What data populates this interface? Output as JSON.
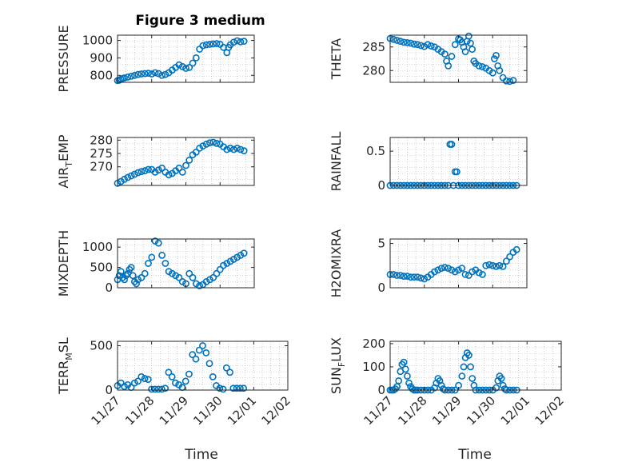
{
  "chart_data": [
    {
      "id": "pressure",
      "type": "scatter",
      "title": "Figure 3 medium",
      "ylabel": "PRESSURE",
      "ylabel_sub": "",
      "ylabel_tail": "",
      "xlim": [
        "11/27",
        "12/01"
      ],
      "ylim": [
        760,
        1030
      ],
      "yticks": [
        800,
        900,
        1000
      ],
      "ytick_labels": [
        "800",
        "900",
        "1000"
      ],
      "grid": true,
      "x": [
        0.0,
        0.05,
        0.1,
        0.15,
        0.2,
        0.3,
        0.4,
        0.5,
        0.6,
        0.7,
        0.8,
        0.9,
        1.0,
        1.1,
        1.2,
        1.3,
        1.4,
        1.5,
        1.6,
        1.7,
        1.8,
        1.9,
        2.0,
        2.1,
        2.2,
        2.3,
        2.4,
        2.5,
        2.6,
        2.7,
        2.8,
        2.9,
        3.0,
        3.1,
        3.2,
        3.25,
        3.3,
        3.4,
        3.5,
        3.6,
        3.7
      ],
      "y": [
        770,
        772,
        778,
        782,
        785,
        790,
        795,
        800,
        805,
        808,
        810,
        812,
        808,
        815,
        810,
        800,
        805,
        815,
        830,
        845,
        860,
        850,
        840,
        845,
        870,
        900,
        950,
        970,
        975,
        978,
        980,
        982,
        978,
        960,
        930,
        960,
        975,
        990,
        998,
        992,
        995
      ]
    },
    {
      "id": "theta",
      "type": "scatter",
      "title": "",
      "ylabel": "THETA",
      "ylabel_sub": "",
      "ylabel_tail": "",
      "xlim": [
        "11/27",
        "12/01"
      ],
      "ylim": [
        277.5,
        287.5
      ],
      "yticks": [
        280,
        285
      ],
      "ytick_labels": [
        "280",
        "285"
      ],
      "grid": true,
      "x": [
        0.0,
        0.1,
        0.2,
        0.3,
        0.4,
        0.5,
        0.6,
        0.7,
        0.8,
        0.9,
        1.0,
        1.1,
        1.2,
        1.3,
        1.4,
        1.5,
        1.6,
        1.65,
        1.7,
        1.8,
        1.9,
        2.0,
        2.05,
        2.1,
        2.15,
        2.2,
        2.25,
        2.3,
        2.35,
        2.4,
        2.45,
        2.5,
        2.6,
        2.7,
        2.8,
        2.9,
        3.0,
        3.05,
        3.1,
        3.15,
        3.2,
        3.3,
        3.4,
        3.5,
        3.6
      ],
      "y": [
        286.8,
        286.6,
        286.4,
        286.2,
        286.0,
        285.9,
        285.8,
        285.6,
        285.5,
        285.3,
        285.1,
        285.5,
        285.2,
        285.0,
        284.5,
        284.0,
        283.5,
        282.0,
        281.0,
        283.0,
        285.5,
        286.7,
        286.5,
        286.0,
        285.0,
        284.0,
        286.2,
        287.3,
        285.8,
        284.5,
        282.0,
        281.5,
        281.0,
        280.8,
        280.5,
        280.0,
        279.5,
        282.5,
        283.2,
        281.0,
        280.0,
        278.5,
        277.8,
        277.7,
        277.9
      ]
    },
    {
      "id": "air_temp",
      "type": "scatter",
      "title": "",
      "ylabel": "AIR",
      "ylabel_sub": "T",
      "ylabel_tail": "EMP",
      "xlim": [
        "11/27",
        "12/01"
      ],
      "ylim": [
        263,
        281
      ],
      "yticks": [
        270,
        275,
        280
      ],
      "ytick_labels": [
        "270",
        "275",
        "280"
      ],
      "grid": true,
      "x": [
        0.0,
        0.1,
        0.2,
        0.3,
        0.4,
        0.5,
        0.6,
        0.7,
        0.8,
        0.9,
        1.0,
        1.1,
        1.2,
        1.3,
        1.4,
        1.5,
        1.6,
        1.7,
        1.8,
        1.9,
        2.0,
        2.1,
        2.2,
        2.3,
        2.4,
        2.5,
        2.6,
        2.7,
        2.8,
        2.9,
        3.0,
        3.1,
        3.2,
        3.3,
        3.4,
        3.5,
        3.6,
        3.7
      ],
      "y": [
        263.8,
        264.5,
        265.3,
        266.0,
        266.6,
        267.2,
        267.8,
        268.2,
        268.5,
        269.0,
        269.0,
        268.0,
        268.8,
        269.5,
        268.0,
        267.0,
        267.5,
        268.5,
        269.5,
        268.0,
        270.5,
        272.5,
        274.5,
        275.5,
        277.0,
        277.8,
        278.5,
        279.0,
        279.2,
        278.8,
        278.5,
        277.5,
        276.5,
        277.0,
        276.5,
        277.0,
        276.5,
        276.0
      ]
    },
    {
      "id": "rainfall",
      "type": "scatter",
      "title": "",
      "ylabel": "RAINFALL",
      "ylabel_sub": "",
      "ylabel_tail": "",
      "xlim": [
        "11/27",
        "12/01"
      ],
      "ylim": [
        0,
        0.7
      ],
      "yticks": [
        0,
        0.5
      ],
      "ytick_labels": [
        "0",
        "0.5"
      ],
      "grid": true,
      "x": [
        0.0,
        0.1,
        0.2,
        0.3,
        0.4,
        0.5,
        0.6,
        0.7,
        0.8,
        0.9,
        1.0,
        1.1,
        1.2,
        1.3,
        1.4,
        1.5,
        1.6,
        1.7,
        1.75,
        1.8,
        1.85,
        1.9,
        1.95,
        2.0,
        2.1,
        2.2,
        2.3,
        2.4,
        2.5,
        2.6,
        2.7,
        2.8,
        2.9,
        3.0,
        3.1,
        3.2,
        3.3,
        3.4,
        3.5,
        3.6,
        3.7
      ],
      "y": [
        0,
        0,
        0,
        0,
        0,
        0,
        0,
        0,
        0,
        0,
        0,
        0,
        0,
        0,
        0,
        0,
        0,
        0,
        0.6,
        0.6,
        0,
        0.2,
        0.2,
        0,
        0,
        0,
        0,
        0,
        0,
        0,
        0,
        0,
        0,
        0,
        0,
        0,
        0,
        0,
        0,
        0,
        0
      ]
    },
    {
      "id": "mixdepth",
      "type": "scatter",
      "title": "",
      "ylabel": "MIXDEPTH",
      "ylabel_sub": "",
      "ylabel_tail": "",
      "xlim": [
        "11/27",
        "12/01"
      ],
      "ylim": [
        0,
        1200
      ],
      "yticks": [
        0,
        500,
        1000
      ],
      "ytick_labels": [
        "0",
        "500",
        "1000"
      ],
      "grid": true,
      "x": [
        0.0,
        0.05,
        0.1,
        0.15,
        0.2,
        0.25,
        0.3,
        0.35,
        0.4,
        0.45,
        0.5,
        0.55,
        0.6,
        0.7,
        0.8,
        0.9,
        1.0,
        1.1,
        1.2,
        1.3,
        1.4,
        1.5,
        1.6,
        1.7,
        1.8,
        1.9,
        2.0,
        2.1,
        2.2,
        2.3,
        2.4,
        2.5,
        2.6,
        2.7,
        2.8,
        2.9,
        3.0,
        3.1,
        3.2,
        3.3,
        3.4,
        3.5,
        3.6,
        3.7
      ],
      "y": [
        200,
        300,
        400,
        250,
        200,
        300,
        350,
        450,
        500,
        300,
        150,
        100,
        200,
        250,
        350,
        600,
        750,
        1150,
        1100,
        800,
        600,
        400,
        350,
        300,
        250,
        150,
        100,
        350,
        250,
        100,
        50,
        80,
        150,
        200,
        250,
        350,
        450,
        550,
        600,
        650,
        700,
        750,
        800,
        850
      ]
    },
    {
      "id": "h2omixra",
      "type": "scatter",
      "title": "",
      "ylabel": "H2OMIXRA",
      "ylabel_sub": "",
      "ylabel_tail": "",
      "xlim": [
        "11/27",
        "12/01"
      ],
      "ylim": [
        0,
        5.5
      ],
      "yticks": [
        0,
        5
      ],
      "ytick_labels": [
        "0",
        "5"
      ],
      "grid": true,
      "x": [
        0.0,
        0.1,
        0.2,
        0.3,
        0.4,
        0.5,
        0.6,
        0.7,
        0.8,
        0.9,
        1.0,
        1.1,
        1.2,
        1.3,
        1.4,
        1.5,
        1.6,
        1.7,
        1.8,
        1.9,
        2.0,
        2.1,
        2.2,
        2.3,
        2.4,
        2.5,
        2.6,
        2.7,
        2.8,
        2.9,
        3.0,
        3.1,
        3.2,
        3.3,
        3.4,
        3.5,
        3.6,
        3.7
      ],
      "y": [
        1.5,
        1.5,
        1.4,
        1.4,
        1.3,
        1.3,
        1.2,
        1.2,
        1.2,
        1.1,
        1.0,
        1.2,
        1.5,
        1.8,
        2.0,
        2.2,
        2.3,
        2.2,
        2.0,
        1.8,
        2.0,
        2.2,
        1.5,
        1.4,
        1.8,
        2.0,
        1.7,
        1.5,
        2.5,
        2.6,
        2.5,
        2.4,
        2.5,
        2.4,
        3.0,
        3.5,
        4.0,
        4.3
      ]
    },
    {
      "id": "terr_msl",
      "type": "scatter",
      "title": "",
      "ylabel": "TERR",
      "ylabel_sub": "M",
      "ylabel_tail": "SL",
      "xlim": [
        "11/27",
        "12/02"
      ],
      "ylim": [
        0,
        550
      ],
      "yticks": [
        0,
        500
      ],
      "ytick_labels": [
        "0",
        "500"
      ],
      "xticks": [
        "11/27",
        "11/28",
        "11/29",
        "11/30",
        "12/01",
        "12/02"
      ],
      "grid": true,
      "x": [
        0.0,
        0.1,
        0.2,
        0.3,
        0.4,
        0.5,
        0.6,
        0.7,
        0.8,
        0.9,
        1.0,
        1.1,
        1.2,
        1.3,
        1.4,
        1.5,
        1.6,
        1.7,
        1.8,
        1.9,
        2.0,
        2.1,
        2.2,
        2.3,
        2.4,
        2.5,
        2.6,
        2.7,
        2.8,
        2.9,
        3.0,
        3.1,
        3.2,
        3.3,
        3.4,
        3.5,
        3.6,
        3.7
      ],
      "y": [
        50,
        80,
        40,
        60,
        30,
        80,
        100,
        150,
        130,
        120,
        10,
        10,
        10,
        10,
        20,
        200,
        150,
        80,
        60,
        30,
        100,
        180,
        400,
        350,
        450,
        500,
        420,
        300,
        150,
        50,
        20,
        10,
        250,
        200,
        20,
        20,
        20,
        20
      ]
    },
    {
      "id": "sun_flux",
      "type": "scatter",
      "title": "",
      "ylabel": "SUN",
      "ylabel_sub": "F",
      "ylabel_tail": "LUX",
      "xlim": [
        "11/27",
        "12/02"
      ],
      "ylim": [
        0,
        210
      ],
      "yticks": [
        0,
        100,
        200
      ],
      "ytick_labels": [
        "0",
        "100",
        "200"
      ],
      "xticks": [
        "11/27",
        "11/28",
        "11/29",
        "11/30",
        "12/01",
        "12/02"
      ],
      "grid": true,
      "x": [
        0.0,
        0.05,
        0.1,
        0.15,
        0.2,
        0.25,
        0.3,
        0.35,
        0.4,
        0.45,
        0.5,
        0.55,
        0.6,
        0.65,
        0.7,
        0.75,
        0.8,
        0.9,
        1.0,
        1.1,
        1.2,
        1.3,
        1.35,
        1.4,
        1.45,
        1.5,
        1.55,
        1.6,
        1.7,
        1.8,
        1.9,
        2.0,
        2.1,
        2.15,
        2.2,
        2.25,
        2.3,
        2.35,
        2.4,
        2.45,
        2.5,
        2.6,
        2.7,
        2.8,
        2.9,
        3.0,
        3.1,
        3.15,
        3.2,
        3.25,
        3.3,
        3.35,
        3.4,
        3.5,
        3.6,
        3.7
      ],
      "y": [
        0,
        0,
        0,
        5,
        15,
        40,
        80,
        110,
        120,
        90,
        60,
        30,
        15,
        5,
        0,
        0,
        0,
        0,
        0,
        0,
        0,
        10,
        30,
        50,
        40,
        20,
        5,
        0,
        0,
        0,
        0,
        20,
        60,
        100,
        140,
        160,
        150,
        100,
        50,
        20,
        0,
        0,
        0,
        0,
        0,
        0,
        10,
        40,
        60,
        50,
        20,
        5,
        0,
        0,
        0,
        0
      ]
    }
  ],
  "xlabel_left": "Time",
  "xlabel_right": "Time",
  "colors": {
    "marker": "#0072BD",
    "axes": "#262626",
    "grid": "#b0b0b0",
    "background": "#ffffff"
  }
}
